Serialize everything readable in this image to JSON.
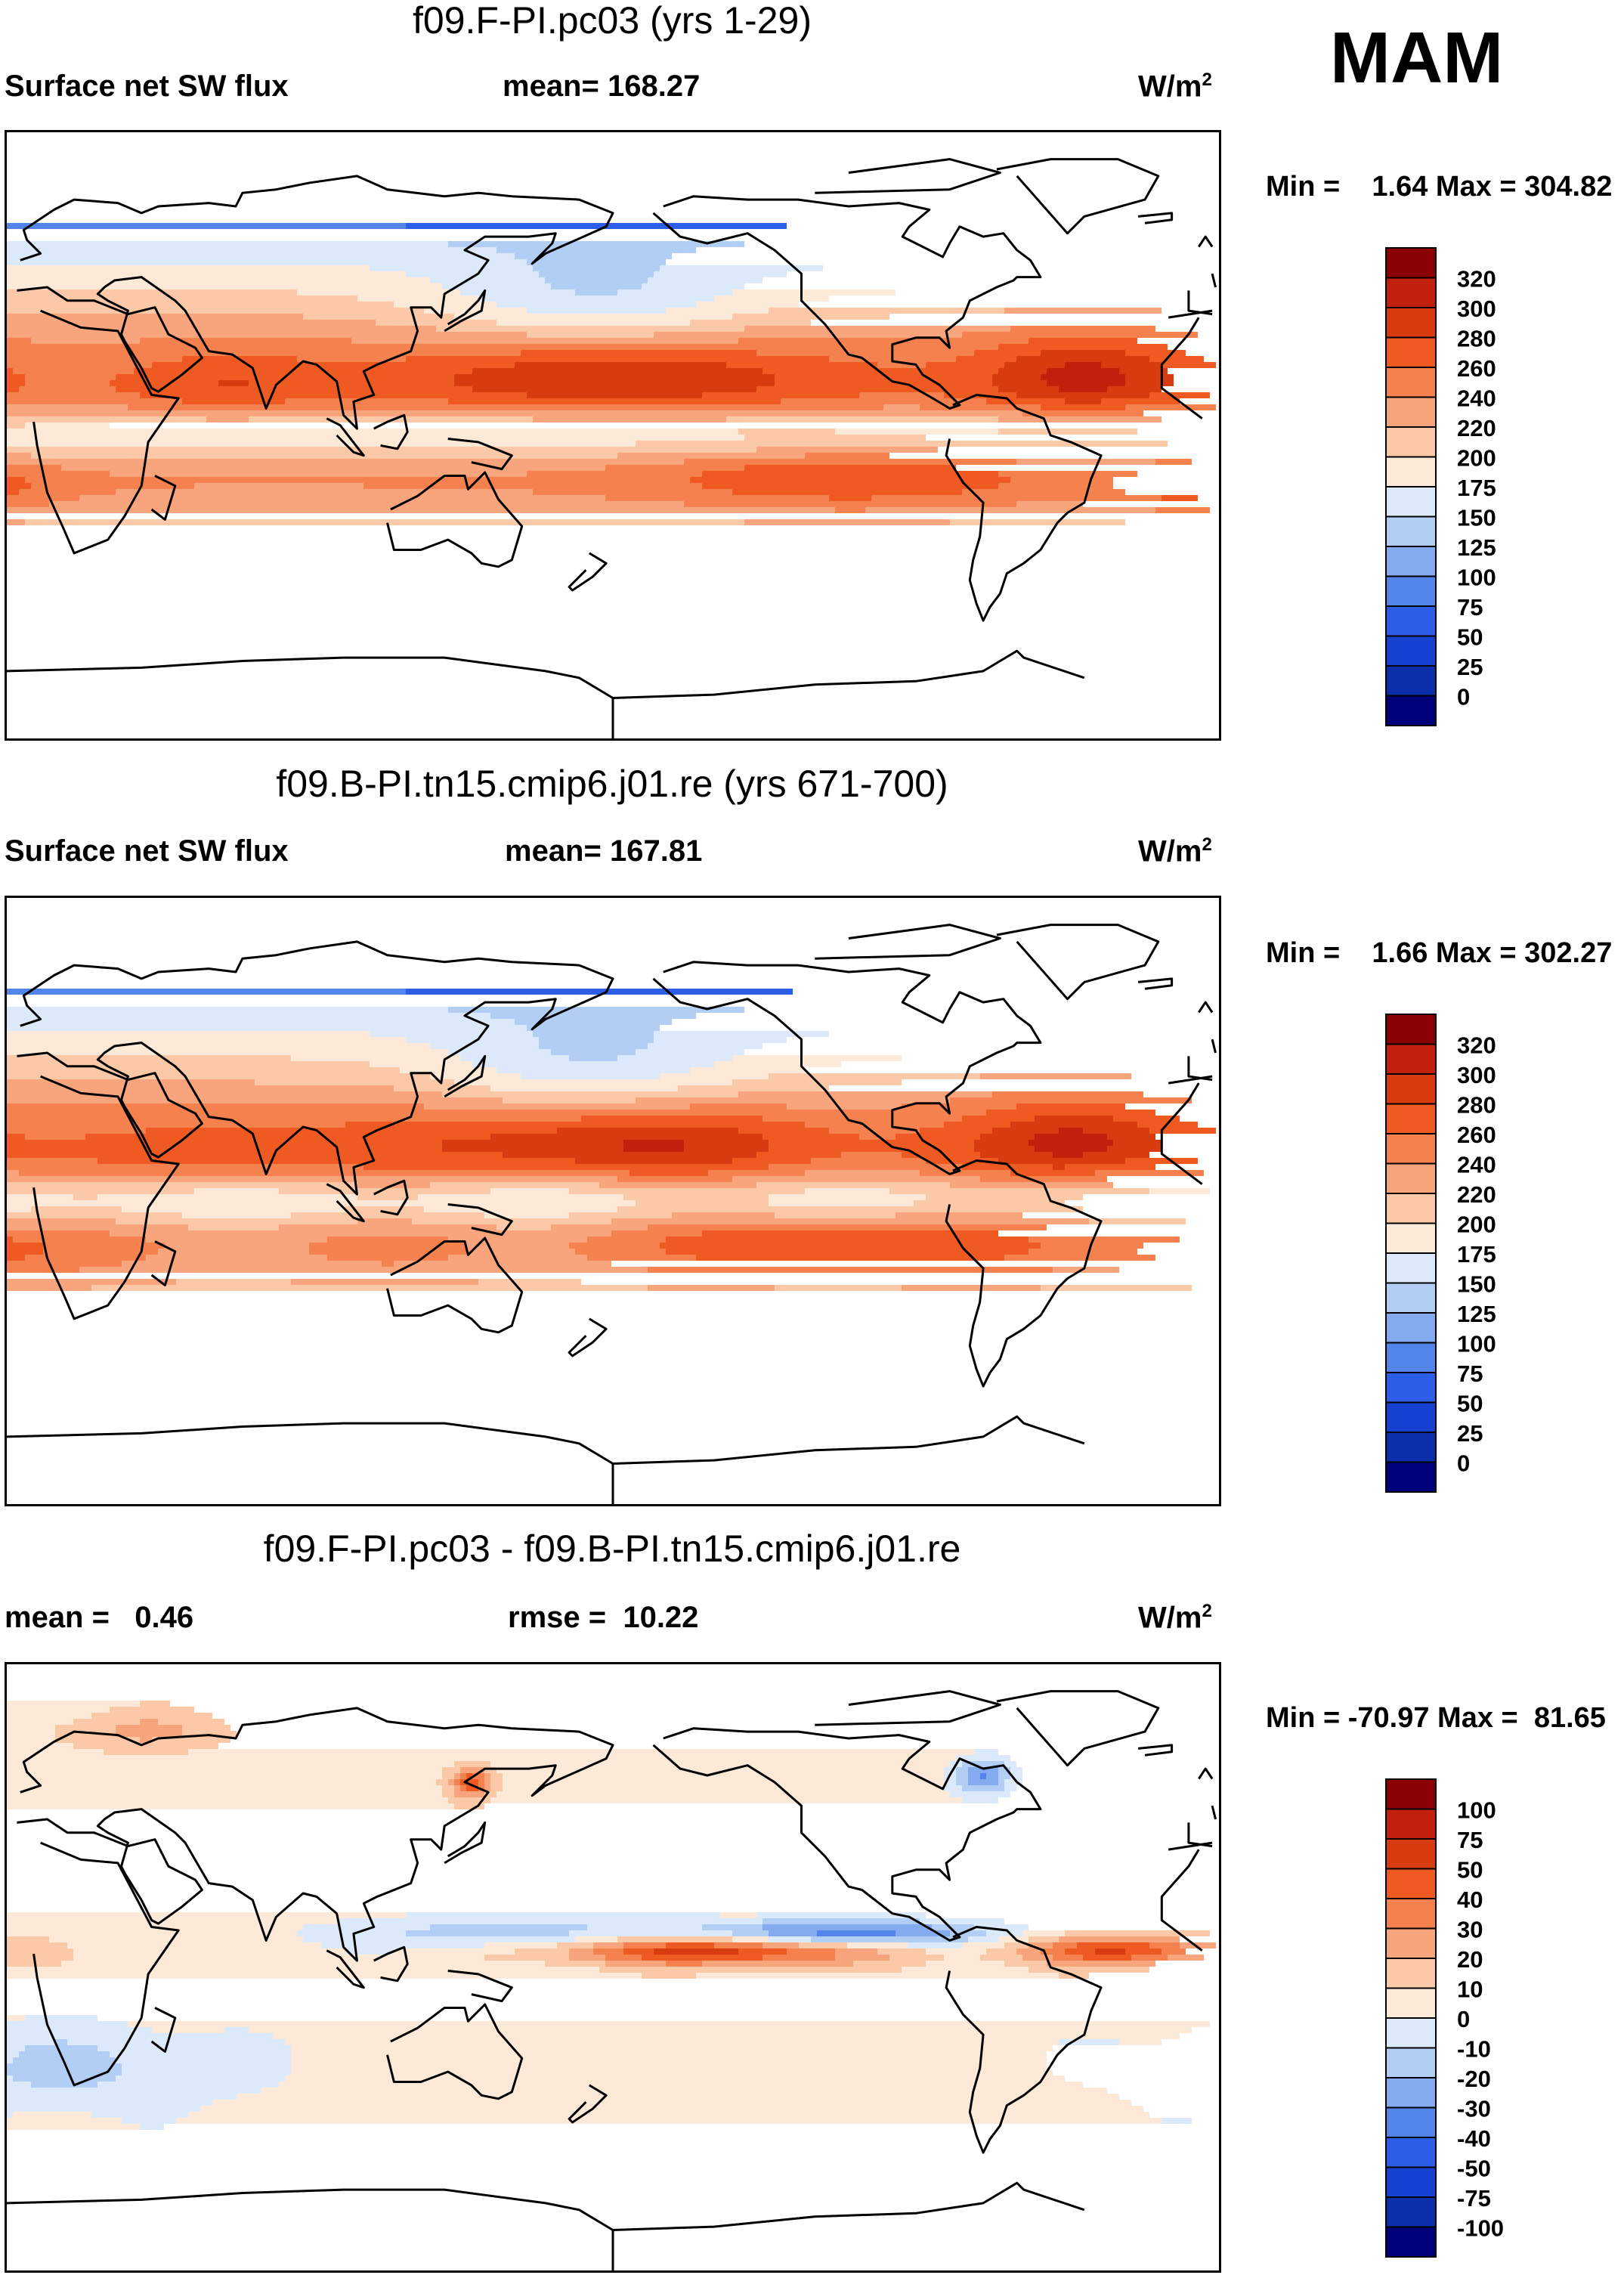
{
  "season": "MAM",
  "units_label": "W/m",
  "units_sup": "2",
  "panels": [
    {
      "title": "f09.F-PI.pc03 (yrs 1-29)",
      "left_label": "Surface net SW flux",
      "center_label": "mean= 168.27",
      "minmax": "Min =    1.64 Max = 304.82"
    },
    {
      "title": "f09.B-PI.tn15.cmip6.j01.re (yrs 671-700)",
      "left_label": "Surface net SW flux",
      "center_label": "mean= 167.81",
      "minmax": "Min =    1.66 Max = 302.27"
    },
    {
      "title": "f09.F-PI.pc03 - f09.B-PI.tn15.cmip6.j01.re",
      "left_label": "mean =   0.46",
      "center_label": "rmse =  10.22",
      "minmax": "Min = -70.97 Max =  81.65"
    }
  ],
  "chart_data": [
    {
      "type": "heatmap",
      "title": "f09.F-PI.pc03 (yrs 1-29)",
      "variable": "Surface net SW flux",
      "units": "W/m2",
      "mean": 168.27,
      "min": 1.64,
      "max": 304.82,
      "colorbar_levels": [
        "320",
        "300",
        "280",
        "260",
        "240",
        "220",
        "200",
        "175",
        "150",
        "125",
        "100",
        "75",
        "50",
        "25",
        "0"
      ],
      "colorbar_colors": [
        "#8b0000",
        "#c1200c",
        "#d93b10",
        "#ee5a22",
        "#f4814e",
        "#f8a47c",
        "#fbc8a8",
        "#fde9d8",
        "#dbe9fb",
        "#b3cef5",
        "#84aaf0",
        "#5284ea",
        "#2d5ee8",
        "#1540d0",
        "#0b2faa",
        "#00007a"
      ]
    },
    {
      "type": "heatmap",
      "title": "f09.B-PI.tn15.cmip6.j01.re (yrs 671-700)",
      "variable": "Surface net SW flux",
      "units": "W/m2",
      "mean": 167.81,
      "min": 1.66,
      "max": 302.27,
      "colorbar_levels": [
        "320",
        "300",
        "280",
        "260",
        "240",
        "220",
        "200",
        "175",
        "150",
        "125",
        "100",
        "75",
        "50",
        "25",
        "0"
      ],
      "colorbar_colors": [
        "#8b0000",
        "#c1200c",
        "#d93b10",
        "#ee5a22",
        "#f4814e",
        "#f8a47c",
        "#fbc8a8",
        "#fde9d8",
        "#dbe9fb",
        "#b3cef5",
        "#84aaf0",
        "#5284ea",
        "#2d5ee8",
        "#1540d0",
        "#0b2faa",
        "#00007a"
      ]
    },
    {
      "type": "heatmap",
      "title": "f09.F-PI.pc03 - f09.B-PI.tn15.cmip6.j01.re",
      "units": "W/m2",
      "mean": 0.46,
      "rmse": 10.22,
      "min": -70.97,
      "max": 81.65,
      "colorbar_levels": [
        "100",
        "75",
        "50",
        "40",
        "30",
        "20",
        "10",
        "0",
        "-10",
        "-20",
        "-30",
        "-40",
        "-50",
        "-75",
        "-100"
      ],
      "colorbar_colors": [
        "#8b0000",
        "#c1200c",
        "#d93b10",
        "#ee5a22",
        "#f4814e",
        "#f8a47c",
        "#fbc8a8",
        "#fde9d8",
        "#dbe9fb",
        "#b3cef5",
        "#84aaf0",
        "#5284ea",
        "#2d5ee8",
        "#1540d0",
        "#0b2faa",
        "#00007a"
      ]
    }
  ]
}
